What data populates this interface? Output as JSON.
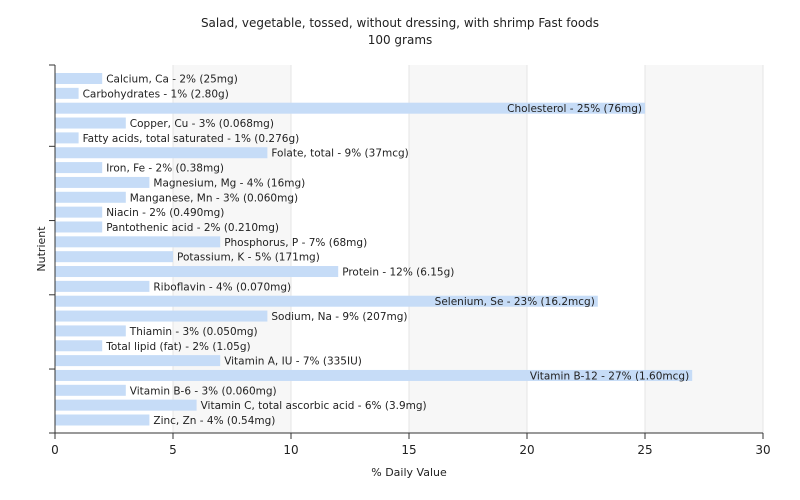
{
  "chart_data": {
    "type": "bar",
    "orientation": "horizontal",
    "title": "Salad, vegetable, tossed, without dressing, with shrimp Fast foods",
    "subtitle": "100 grams",
    "xlabel": "% Daily Value",
    "ylabel": "Nutrient",
    "xlim": [
      0,
      30
    ],
    "xticks": [
      0,
      5,
      10,
      15,
      20,
      25,
      30
    ],
    "grid": true,
    "bar_color": "#c6dcf7",
    "categories": [
      "Calcium, Ca",
      "Carbohydrates",
      "Cholesterol",
      "Copper, Cu",
      "Fatty acids, total saturated",
      "Folate, total",
      "Iron, Fe",
      "Magnesium, Mg",
      "Manganese, Mn",
      "Niacin",
      "Pantothenic acid",
      "Phosphorus, P",
      "Potassium, K",
      "Protein",
      "Riboflavin",
      "Selenium, Se",
      "Sodium, Na",
      "Thiamin",
      "Total lipid (fat)",
      "Vitamin A, IU",
      "Vitamin B-12",
      "Vitamin B-6",
      "Vitamin C, total ascorbic acid",
      "Zinc, Zn"
    ],
    "values": [
      2,
      1,
      25,
      3,
      1,
      9,
      2,
      4,
      3,
      2,
      2,
      7,
      5,
      12,
      4,
      23,
      9,
      3,
      2,
      7,
      27,
      3,
      6,
      4
    ],
    "labels": [
      "Calcium, Ca - 2% (25mg)",
      "Carbohydrates - 1% (2.80g)",
      "Cholesterol - 25% (76mg)",
      "Copper, Cu - 3% (0.068mg)",
      "Fatty acids, total saturated - 1% (0.276g)",
      "Folate, total - 9% (37mcg)",
      "Iron, Fe - 2% (0.38mg)",
      "Magnesium, Mg - 4% (16mg)",
      "Manganese, Mn - 3% (0.060mg)",
      "Niacin - 2% (0.490mg)",
      "Pantothenic acid - 2% (0.210mg)",
      "Phosphorus, P - 7% (68mg)",
      "Potassium, K - 5% (171mg)",
      "Protein - 12% (6.15g)",
      "Riboflavin - 4% (0.070mg)",
      "Selenium, Se - 23% (16.2mcg)",
      "Sodium, Na - 9% (207mg)",
      "Thiamin - 3% (0.050mg)",
      "Total lipid (fat) - 2% (1.05g)",
      "Vitamin A, IU - 7% (335IU)",
      "Vitamin B-12 - 27% (1.60mcg)",
      "Vitamin B-6 - 3% (0.060mg)",
      "Vitamin C, total ascorbic acid - 6% (3.9mg)",
      "Zinc, Zn - 4% (0.54mg)"
    ]
  }
}
